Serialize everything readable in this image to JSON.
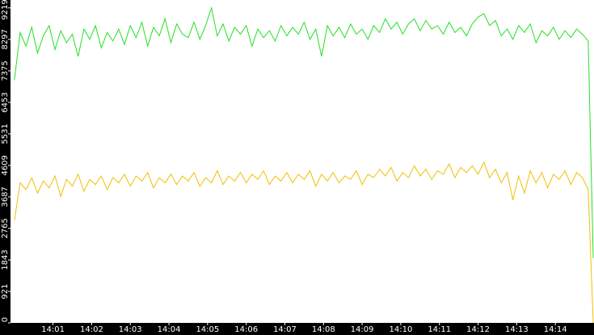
{
  "chart_data": {
    "type": "line",
    "x": [
      0,
      0.15,
      0.3,
      0.45,
      0.6,
      0.75,
      0.9,
      1.05,
      1.2,
      1.35,
      1.5,
      1.65,
      1.8,
      1.95,
      2.1,
      2.25,
      2.4,
      2.55,
      2.7,
      2.85,
      3,
      3.15,
      3.3,
      3.45,
      3.6,
      3.75,
      3.9,
      4.05,
      4.2,
      4.35,
      4.5,
      4.65,
      4.8,
      4.95,
      5.1,
      5.25,
      5.4,
      5.55,
      5.7,
      5.85,
      6,
      6.15,
      6.3,
      6.45,
      6.6,
      6.75,
      6.9,
      7.05,
      7.2,
      7.35,
      7.5,
      7.65,
      7.8,
      7.95,
      8.1,
      8.25,
      8.4,
      8.55,
      8.7,
      8.85,
      9,
      9.15,
      9.3,
      9.45,
      9.6,
      9.75,
      9.9,
      10.05,
      10.2,
      10.35,
      10.5,
      10.65,
      10.8,
      10.95,
      11.1,
      11.25,
      11.4,
      11.55,
      11.7,
      11.85,
      12,
      12.15,
      12.3,
      12.45,
      12.6,
      12.75,
      12.9,
      13.05,
      13.2,
      13.35,
      13.5,
      13.65,
      13.8,
      13.95,
      14.1,
      14.25,
      14.4,
      14.55,
      14.7,
      14.85,
      14.98
    ],
    "series": [
      {
        "color": "#22e022",
        "values": [
          7100,
          8500,
          8100,
          8650,
          7900,
          8400,
          8700,
          8000,
          8550,
          8200,
          8450,
          7800,
          8600,
          8300,
          8700,
          8050,
          8500,
          8250,
          8600,
          8150,
          8700,
          8350,
          8800,
          8100,
          8650,
          8400,
          8900,
          8200,
          8750,
          8450,
          8350,
          8800,
          8300,
          8700,
          9219,
          8400,
          8750,
          8250,
          8650,
          8450,
          8700,
          8100,
          8600,
          8350,
          8550,
          8250,
          8700,
          8400,
          8650,
          8450,
          8800,
          8300,
          8600,
          7800,
          8700,
          8400,
          8650,
          8350,
          8750,
          8450,
          8600,
          8300,
          8700,
          8500,
          8900,
          8600,
          8800,
          8450,
          8750,
          8900,
          8550,
          8850,
          8600,
          8700,
          8450,
          8800,
          8500,
          8650,
          8400,
          8750,
          8950,
          9050,
          8700,
          8850,
          8400,
          8600,
          8300,
          8700,
          8500,
          8750,
          8200,
          8550,
          8400,
          8650,
          8300,
          8550,
          8350,
          8600,
          8450,
          8250,
          1900
        ]
      },
      {
        "color": "#f0c000",
        "values": [
          3000,
          4100,
          3900,
          4250,
          3800,
          4150,
          3950,
          4300,
          3700,
          4200,
          4000,
          4350,
          3850,
          4200,
          4050,
          4300,
          3900,
          4250,
          4100,
          4350,
          4000,
          4300,
          4150,
          4400,
          3950,
          4250,
          4100,
          4350,
          4050,
          4300,
          4150,
          4400,
          4000,
          4250,
          4100,
          4450,
          4050,
          4300,
          4150,
          4400,
          4100,
          4350,
          4200,
          4450,
          4050,
          4300,
          4150,
          4400,
          4100,
          4350,
          4200,
          4450,
          4000,
          4350,
          4150,
          4400,
          4100,
          4300,
          4200,
          4450,
          4050,
          4350,
          4250,
          4500,
          4300,
          4550,
          4150,
          4400,
          4250,
          4600,
          4300,
          4500,
          4200,
          4450,
          4350,
          4650,
          4250,
          4550,
          4400,
          4600,
          4350,
          4700,
          4250,
          4500,
          4100,
          4400,
          3600,
          4300,
          3800,
          4450,
          4100,
          4400,
          3950,
          4350,
          4200,
          4450,
          4050,
          4400,
          4250,
          3900,
          0
        ]
      }
    ],
    "xlim": [
      -0.1,
      15
    ],
    "xticks": [
      {
        "value": 1,
        "label": "14:01"
      },
      {
        "value": 2,
        "label": "14:02"
      },
      {
        "value": 3,
        "label": "14:03"
      },
      {
        "value": 4,
        "label": "14:04"
      },
      {
        "value": 5,
        "label": "14:05"
      },
      {
        "value": 6,
        "label": "14:06"
      },
      {
        "value": 7,
        "label": "14:07"
      },
      {
        "value": 8,
        "label": "14:08"
      },
      {
        "value": 9,
        "label": "14:09"
      },
      {
        "value": 10,
        "label": "14:10"
      },
      {
        "value": 11,
        "label": "14:11"
      },
      {
        "value": 12,
        "label": "14:12"
      },
      {
        "value": 13,
        "label": "14:13"
      },
      {
        "value": 14,
        "label": "14:14"
      }
    ],
    "ylim": [
      0,
      9450
    ],
    "yticks": [
      0,
      921,
      1843,
      2765,
      3687,
      4609,
      5531,
      6453,
      7375,
      8297,
      9219
    ]
  }
}
